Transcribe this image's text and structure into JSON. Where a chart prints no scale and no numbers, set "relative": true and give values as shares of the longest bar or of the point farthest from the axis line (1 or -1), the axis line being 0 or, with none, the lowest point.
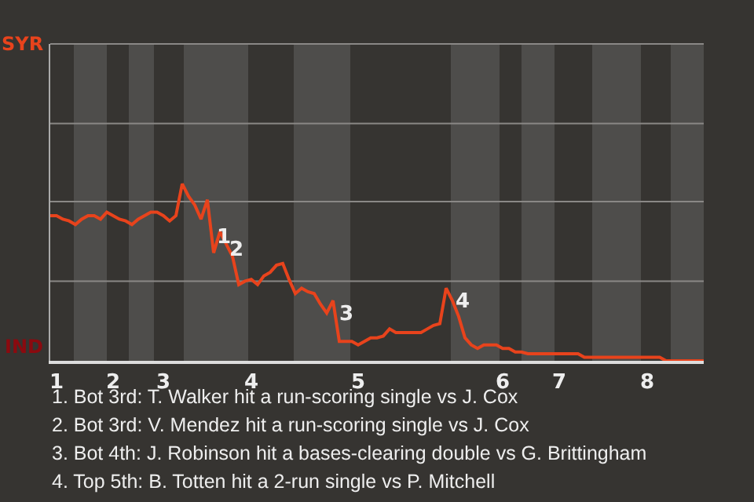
{
  "chart_data": {
    "type": "line",
    "relative": true,
    "categories": [
      null,
      "1",
      null,
      null,
      null,
      null,
      null,
      null,
      null,
      null,
      "2",
      null,
      null,
      null,
      null,
      null,
      null,
      null,
      "3",
      null,
      null,
      null,
      null,
      null,
      null,
      null,
      null,
      null,
      null,
      null,
      null,
      null,
      "4",
      null,
      null,
      null,
      null,
      null,
      null,
      null,
      null,
      null,
      null,
      null,
      null,
      null,
      null,
      null,
      null,
      "5",
      null,
      null,
      null,
      null,
      null,
      null,
      null,
      null,
      null,
      null,
      null,
      null,
      null,
      null,
      null,
      null,
      null,
      null,
      null,
      null,
      null,
      null,
      "6",
      null,
      null,
      null,
      null,
      null,
      null,
      null,
      null,
      "7",
      null,
      null,
      null,
      null,
      null,
      null,
      null,
      null,
      null,
      null,
      null,
      null,
      null,
      "8",
      null,
      null,
      null,
      null,
      null,
      null,
      null,
      null,
      null
    ],
    "marker": "none",
    "line_style": "solid",
    "ref_lines": [
      {
        "axis": "y",
        "value": 0.45,
        "color": "#8a8886"
      },
      {
        "axis": "y",
        "value": 0.9,
        "color": "#8a8886"
      },
      {
        "axis": "y",
        "value": 1.34,
        "color": "#8a8886"
      }
    ],
    "series": [
      {
        "color": "#e8431c",
        "values": [
          0.82,
          0.82,
          0.8,
          0.79,
          0.77,
          0.8,
          0.82,
          0.82,
          0.8,
          0.84,
          0.82,
          0.8,
          0.79,
          0.77,
          0.8,
          0.82,
          0.84,
          0.84,
          0.82,
          0.79,
          0.82,
          1,
          0.93,
          0.88,
          0.8,
          0.91,
          0.61,
          0.73,
          0.66,
          0.59,
          0.43,
          0.45,
          0.46,
          0.43,
          0.48,
          0.5,
          0.54,
          0.55,
          0.46,
          0.38,
          0.41,
          0.39,
          0.38,
          0.32,
          0.27,
          0.34,
          0.11,
          0.11,
          0.11,
          0.09,
          0.11,
          0.13,
          0.13,
          0.14,
          0.18,
          0.16,
          0.16,
          0.16,
          0.16,
          0.16,
          0.18,
          0.2,
          0.21,
          0.41,
          0.34,
          0.25,
          0.13,
          0.09,
          0.07,
          0.09,
          0.09,
          0.09,
          0.07,
          0.07,
          0.05,
          0.05,
          0.04,
          0.04,
          0.04,
          0.04,
          0.04,
          0.04,
          0.04,
          0.04,
          0.04,
          0.02,
          0.02,
          0.02,
          0.02,
          0.02,
          0.02,
          0.02,
          0.02,
          0.02,
          0.02,
          0.02,
          0.02,
          0.02,
          0,
          0,
          0,
          0,
          0,
          0,
          0
        ]
      }
    ],
    "annotations": [
      "SYR",
      "IND",
      "1",
      "2",
      "3",
      "4",
      "1. Bot 3rd: T. Walker hit a run-scoring single vs J. Cox",
      "2. Bot 3rd: V. Mendez hit a run-scoring single vs J. Cox",
      "3. Bot 4th: J. Robinson hit a bases-clearing double vs G. Brittingham",
      "4. Top 5th: B. Totten hit a 2-run single vs P. Mitchell"
    ]
  }
}
